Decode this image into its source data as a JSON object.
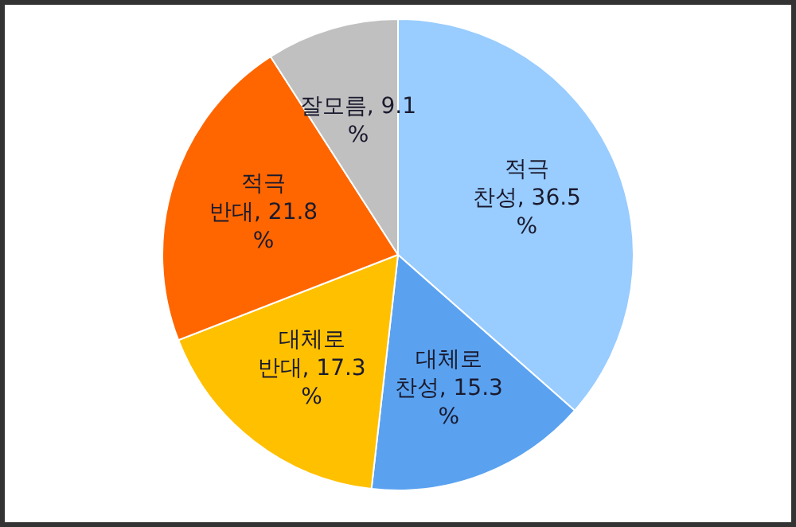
{
  "chart_data": {
    "type": "pie",
    "categories": [
      "적극 찬성",
      "대체로 찬성",
      "대체로 반대",
      "적극 반대",
      "잘모름"
    ],
    "values": [
      36.5,
      15.3,
      17.3,
      21.8,
      9.1
    ],
    "colors": [
      "#99ccff",
      "#5aa2f0",
      "#ffc000",
      "#ff6600",
      "#c0c0c0"
    ],
    "value_labels": [
      ", 36.5 %",
      ", 15.3 %",
      ", 17.3 %",
      ", 21.8 %",
      ", 9.1 %"
    ]
  }
}
